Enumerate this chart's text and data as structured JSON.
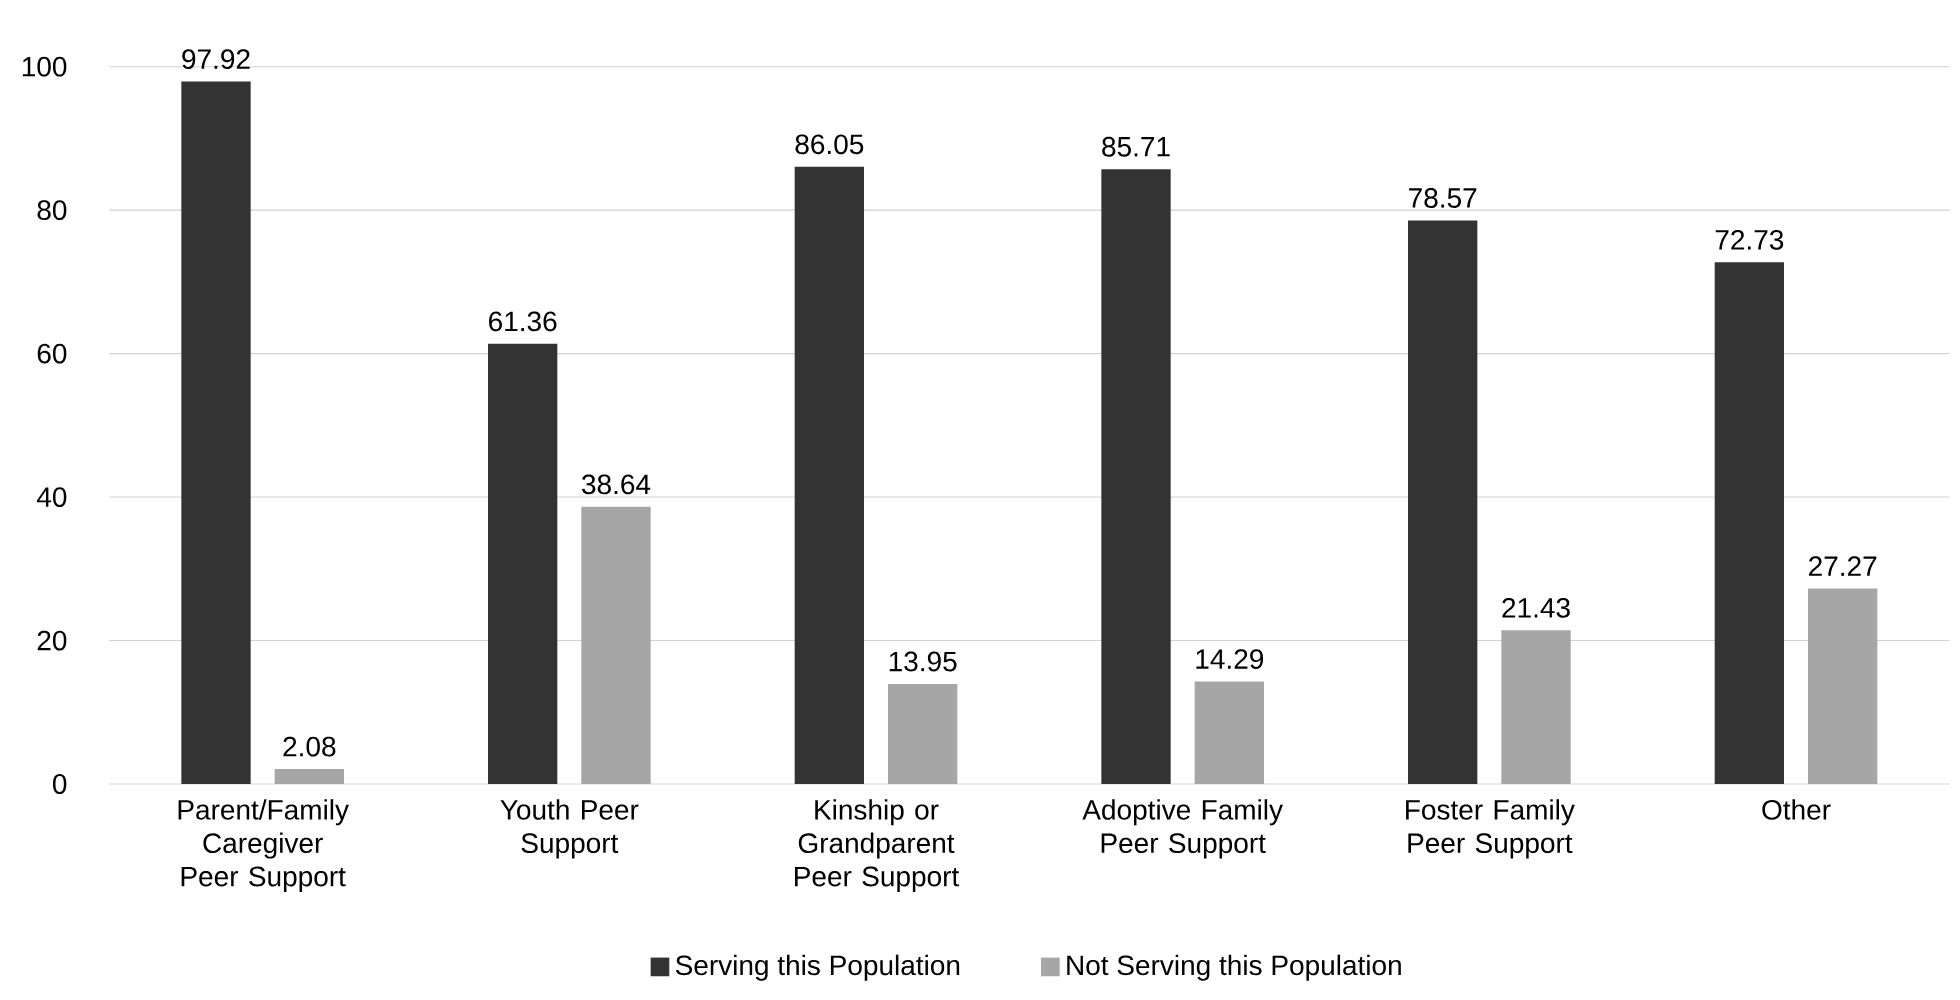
{
  "chart_data": {
    "type": "bar",
    "categories": [
      "Parent/Family Caregiver Peer Support",
      "Youth Peer Support",
      "Kinship or Grandparent Peer Support",
      "Adoptive Family Peer Support",
      "Foster Family Peer Support",
      "Other"
    ],
    "series": [
      {
        "name": "Serving this Population",
        "color": "#333333",
        "values": [
          97.92,
          61.36,
          86.05,
          85.71,
          78.57,
          72.73
        ]
      },
      {
        "name": "Not Serving this Population",
        "color": "#a6a6a6",
        "values": [
          2.08,
          38.64,
          13.95,
          14.29,
          21.43,
          27.27
        ]
      }
    ],
    "ylim": [
      0,
      100
    ],
    "yticks": [
      0,
      20,
      40,
      60,
      80,
      100
    ],
    "grid": "y",
    "legend": "bottom",
    "data_labels": true
  }
}
